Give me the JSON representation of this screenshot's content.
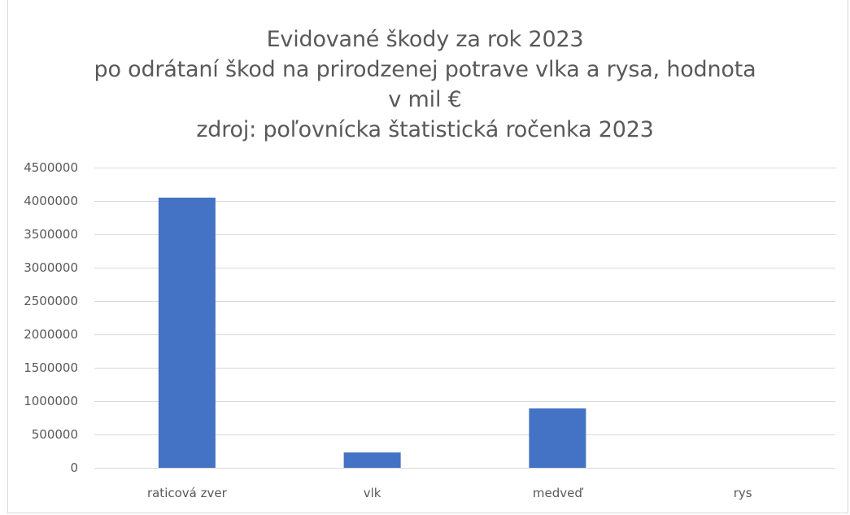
{
  "chart_data": {
    "type": "bar",
    "title_lines": [
      "Evidované škody za rok 2023",
      "po odrátaní škod na prirodzenej  potrave vlka a rysa, hodnota",
      "v mil €",
      "zdroj: poľovnícka štatistická ročenka 2023"
    ],
    "categories": [
      "raticová zver",
      "vlk",
      "medveď",
      "rys"
    ],
    "values": [
      4050000,
      230000,
      890000,
      0
    ],
    "ylim": [
      0,
      4500000
    ],
    "yticks": [
      "0",
      "500000",
      "1000000",
      "1500000",
      "2000000",
      "2500000",
      "3000000",
      "3500000",
      "4000000",
      "4500000"
    ],
    "ytick_values": [
      0,
      500000,
      1000000,
      1500000,
      2000000,
      2500000,
      3000000,
      3500000,
      4000000,
      4500000
    ],
    "grid": true,
    "bar_color": "#4472c4",
    "grid_color": "#d9d9d9",
    "text_color": "#595959"
  }
}
